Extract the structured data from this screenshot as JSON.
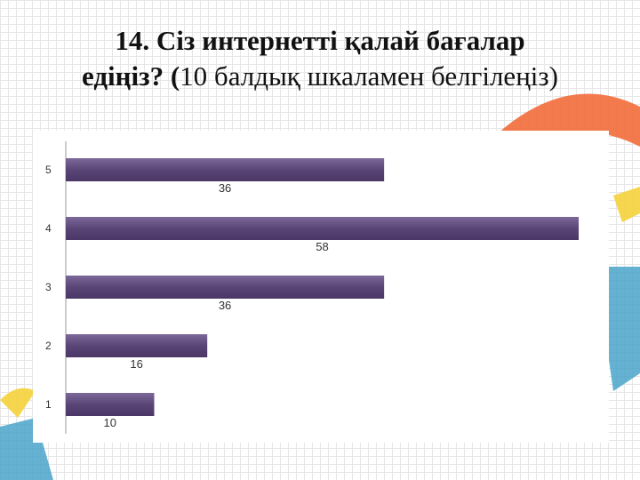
{
  "slide": {
    "title_line1": "14.  Сіз интернетті қалай бағалар",
    "title_line2_bold": "едіңіз? (",
    "title_line2_rest": "10 балдық шкаламен белгілеңіз)"
  },
  "colors": {
    "bar": "#5a4577",
    "bar_light": "#7c6899",
    "orange": "#f26b3a",
    "teal": "#4aa3c9",
    "yellow": "#f4d23b"
  },
  "chart_data": {
    "type": "bar",
    "orientation": "horizontal",
    "categories": [
      "5",
      "4",
      "3",
      "2",
      "1"
    ],
    "values": [
      36,
      58,
      36,
      16,
      10
    ],
    "xlim": [
      0,
      58
    ],
    "grid": false,
    "legend": "none",
    "data_labels": true
  }
}
